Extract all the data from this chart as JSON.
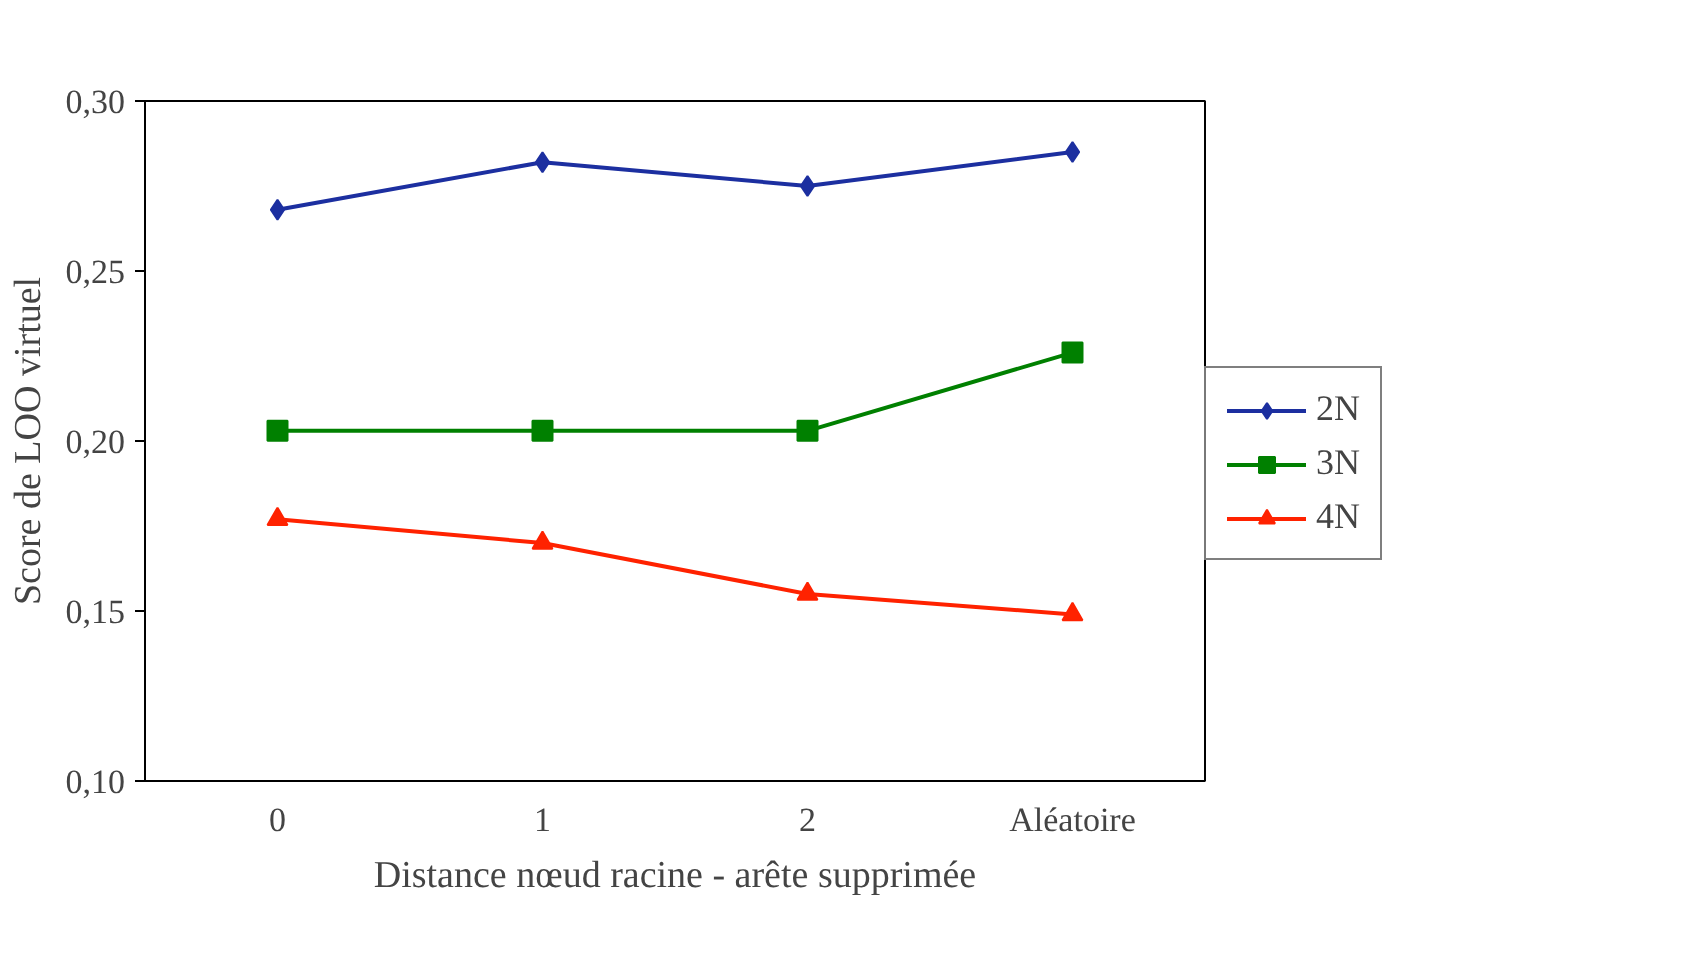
{
  "chart_data": {
    "type": "line",
    "xlabel": "Distance nœud racine - arête supprimée",
    "ylabel": "Score de LOO virtuel",
    "categories": [
      "0",
      "1",
      "2",
      "Aléatoire"
    ],
    "series": [
      {
        "name": "2N",
        "color": "#1c2fa0",
        "marker": "diamond",
        "values": [
          0.268,
          0.282,
          0.275,
          0.285
        ]
      },
      {
        "name": "3N",
        "color": "#008000",
        "marker": "square",
        "values": [
          0.203,
          0.203,
          0.203,
          0.226
        ]
      },
      {
        "name": "4N",
        "color": "#ff2200",
        "marker": "triangle",
        "values": [
          0.177,
          0.17,
          0.155,
          0.149
        ]
      }
    ],
    "ylim": [
      0.1,
      0.3
    ],
    "yticks": [
      {
        "value": 0.1,
        "label": "0,10"
      },
      {
        "value": 0.15,
        "label": "0,15"
      },
      {
        "value": 0.2,
        "label": "0,20"
      },
      {
        "value": 0.25,
        "label": "0,25"
      },
      {
        "value": 0.3,
        "label": "0,30"
      }
    ],
    "grid": false,
    "legend": "right",
    "line_style": "solid"
  }
}
